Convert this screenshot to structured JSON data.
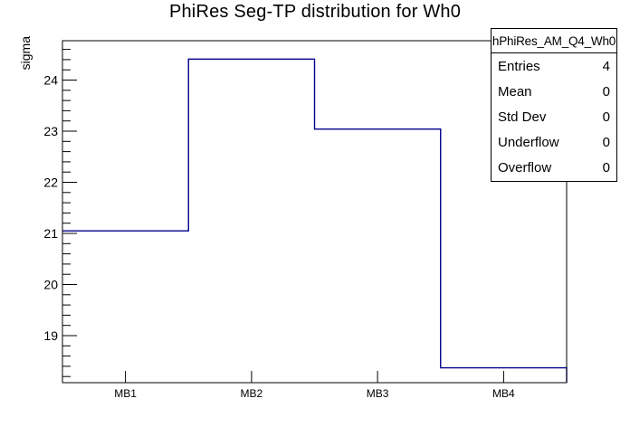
{
  "chart_data": {
    "type": "bar",
    "style": "step-histogram-outline",
    "title": "PhiRes Seg-TP distribution for Wh0",
    "categories": [
      "MB1",
      "MB2",
      "MB3",
      "MB4"
    ],
    "values": [
      21.05,
      24.41,
      23.04,
      18.37
    ],
    "xlabel": "",
    "ylabel": "sigma",
    "ylim": [
      18.08,
      24.77
    ],
    "yticks": [
      19,
      20,
      21,
      22,
      23,
      24
    ],
    "y_minor_step": 0.2,
    "grid": false,
    "legend": false
  },
  "stats": {
    "header": "hPhiRes_AM_Q4_Wh0",
    "rows": [
      {
        "label": "Entries",
        "value": "4"
      },
      {
        "label": "Mean",
        "value": "0"
      },
      {
        "label": "Std Dev",
        "value": "0"
      },
      {
        "label": "Underflow",
        "value": "0"
      },
      {
        "label": "Overflow",
        "value": "0"
      }
    ]
  },
  "colors": {
    "line": "#00008b",
    "frame": "#000000",
    "text": "#000000",
    "background": "#ffffff"
  }
}
